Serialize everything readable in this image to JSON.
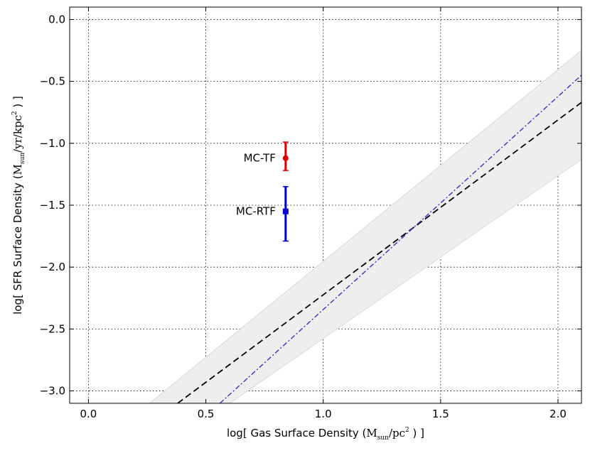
{
  "chart_data": {
    "type": "line",
    "xlabel": {
      "prefix": "log[ Gas Surface Density (",
      "unit_base": "M",
      "unit_sub": "sun",
      "unit_rest": "/pc",
      "unit_sup": "2",
      "suffix": " ) ]"
    },
    "ylabel": {
      "prefix": "log[ SFR Surface Density (",
      "unit_base": "M",
      "unit_sub": "sun",
      "unit_rest": "/yr/kpc",
      "unit_sup": "2",
      "suffix": " ) ]"
    },
    "xlim": [
      -0.08,
      2.1
    ],
    "ylim": [
      -3.1,
      0.1
    ],
    "xticks": [
      0.0,
      0.5,
      1.0,
      1.5,
      2.0
    ],
    "xtick_labels": [
      "0.0",
      "0.5",
      "1.0",
      "1.5",
      "2.0"
    ],
    "yticks": [
      0.0,
      -0.5,
      -1.0,
      -1.5,
      -2.0,
      -2.5,
      -3.0
    ],
    "ytick_labels": [
      "0.0",
      "−0.5",
      "−1.0",
      "−1.5",
      "−2.0",
      "−2.5",
      "−3.0"
    ],
    "grid": true,
    "band": {
      "name": "scatter band",
      "color": "#eeeeee",
      "x": [
        0.26,
        2.1
      ],
      "lower": [
        -3.55,
        -1.13
      ],
      "upper": [
        -3.1,
        -0.25
      ]
    },
    "series": [
      {
        "name": "black dashed fit",
        "style": "dashed",
        "color": "#000000",
        "x": [
          0.38,
          2.1
        ],
        "y": [
          -3.1,
          -0.67
        ]
      },
      {
        "name": "blue dash-dot fit",
        "style": "dashdot",
        "color": "#3333cc",
        "x": [
          0.56,
          2.1
        ],
        "y": [
          -3.1,
          -0.45
        ]
      }
    ],
    "points": [
      {
        "label": "MC-TF",
        "x": 0.84,
        "y": -1.12,
        "yerr_low": -1.22,
        "yerr_high": -0.99,
        "marker": "circle",
        "color": "#dd0000"
      },
      {
        "label": "MC-RTF",
        "x": 0.84,
        "y": -1.55,
        "yerr_low": -1.79,
        "yerr_high": -1.35,
        "marker": "square",
        "color": "#0000cc"
      }
    ]
  }
}
